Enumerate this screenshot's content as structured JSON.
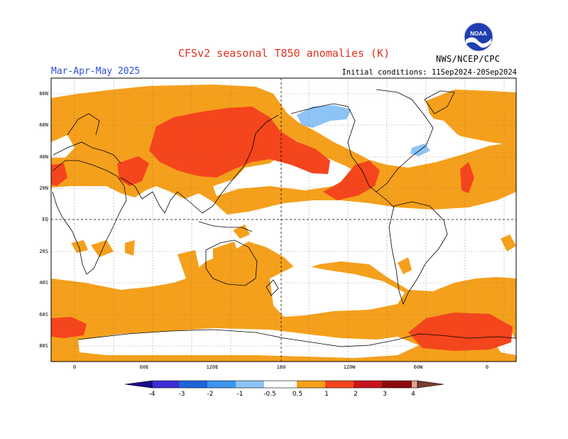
{
  "header": {
    "title": "CFSv2 seasonal T850 anomalies (K)",
    "season": "Mar-Apr-May 2025",
    "initial_conditions": "Initial conditions: 11Sep2024-20Sep2024",
    "agency": "NWS/NCEP/CPC",
    "logo_text": "NOAA"
  },
  "map": {
    "projection": "cylindrical equidistant, Pacific-centered (longitude 0 at left edge)",
    "lat_labels": [
      "80N",
      "60N",
      "40N",
      "20N",
      "EQ",
      "20S",
      "40S",
      "60S",
      "80S"
    ],
    "lon_labels": [
      "0",
      "60E",
      "120E",
      "180",
      "120W",
      "60W",
      "0"
    ],
    "gridlines": "dotted",
    "regions": [
      {
        "name": "eurasia-warm",
        "category": "0.5 to 1"
      },
      {
        "name": "east-asia-core",
        "category": "1 to 2"
      },
      {
        "name": "north-pacific-tongue",
        "category": "1 to 2"
      },
      {
        "name": "mexico-core",
        "category": "1 to 2"
      },
      {
        "name": "canada-cool",
        "category": "-1 to -0.5"
      },
      {
        "name": "antarctic-core",
        "category": "1 to 2"
      },
      {
        "name": "southern-ocean-warm",
        "category": "0.5 to 1"
      }
    ]
  },
  "colorbar": {
    "labels": [
      "-4",
      "-3",
      "-2",
      "-1",
      "-0.5",
      "0.5",
      "1",
      "2",
      "3",
      "4"
    ],
    "colors": [
      "#1c0b8c",
      "#3d2ed6",
      "#1e64d8",
      "#3c96ee",
      "#8ec4f5",
      "#ffffff",
      "#f5a01c",
      "#f5451c",
      "#c8141c",
      "#8c0a0a",
      "#d9a593",
      "#7a3c30"
    ]
  }
}
